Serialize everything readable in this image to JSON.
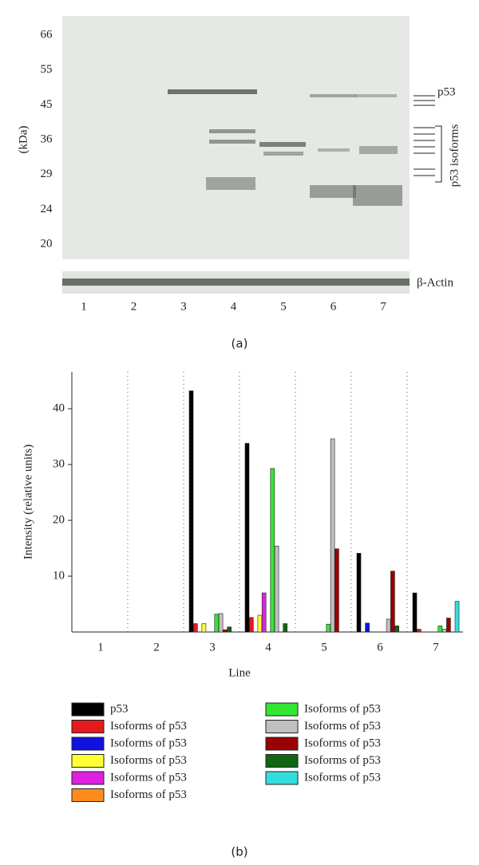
{
  "blot": {
    "unit": "(kDa)",
    "mw_markers": [
      "66",
      "55",
      "45",
      "36",
      "29",
      "24",
      "20"
    ],
    "lanes": [
      "1",
      "2",
      "3",
      "4",
      "5",
      "6",
      "7"
    ],
    "p53_label": "p53",
    "isoforms_label": "p53 isoforms",
    "actin_label": "β-Actin",
    "panel_label": "(a)"
  },
  "chart_data": {
    "type": "bar",
    "panel_label": "(b)",
    "x_label": "Line",
    "y_label": "Intensity (relative units)",
    "categories": [
      "1",
      "2",
      "3",
      "4",
      "5",
      "6",
      "7"
    ],
    "ylim": [
      0,
      46.6
    ],
    "yticks": [
      10,
      20,
      30,
      40
    ],
    "series": [
      {
        "name": "p53",
        "color": "#000000",
        "values": [
          0,
          0,
          43.2,
          33.8,
          0,
          14.1,
          7.0
        ]
      },
      {
        "name": "Isoforms of p53",
        "color": "#e41a1c",
        "values": [
          0,
          0,
          1.5,
          2.6,
          0,
          0,
          0.5
        ]
      },
      {
        "name": "Isoforms of p53",
        "color": "#1010e0",
        "values": [
          0,
          0,
          0,
          0,
          0,
          1.6,
          0
        ]
      },
      {
        "name": "Isoforms of p53",
        "color": "#ffff33",
        "values": [
          0,
          0,
          1.5,
          3.0,
          0,
          0,
          0
        ]
      },
      {
        "name": "Isoforms of p53",
        "color": "#e020e0",
        "values": [
          0,
          0,
          0,
          7.0,
          0,
          0,
          0
        ]
      },
      {
        "name": "Isoforms of p53",
        "color": "#ff8c1a",
        "values": [
          0,
          0,
          0,
          0,
          0,
          0,
          0
        ]
      },
      {
        "name": "Isoforms of p53",
        "color": "#33e633",
        "values": [
          0,
          0,
          3.2,
          29.3,
          1.4,
          0,
          1.1
        ]
      },
      {
        "name": "Isoforms of p53",
        "color": "#c0c0c0",
        "values": [
          0,
          0,
          3.3,
          15.4,
          34.6,
          2.3,
          0.5
        ]
      },
      {
        "name": "Isoforms of p53",
        "color": "#990000",
        "values": [
          0,
          0,
          0.4,
          0,
          14.9,
          10.9,
          2.5
        ]
      },
      {
        "name": "Isoforms of p53",
        "color": "#116611",
        "values": [
          0,
          0,
          0.9,
          1.5,
          0,
          1.1,
          0
        ]
      },
      {
        "name": "Isoforms of p53",
        "color": "#33dddd",
        "values": [
          0,
          0,
          0,
          0,
          0,
          0,
          5.5
        ]
      }
    ]
  }
}
